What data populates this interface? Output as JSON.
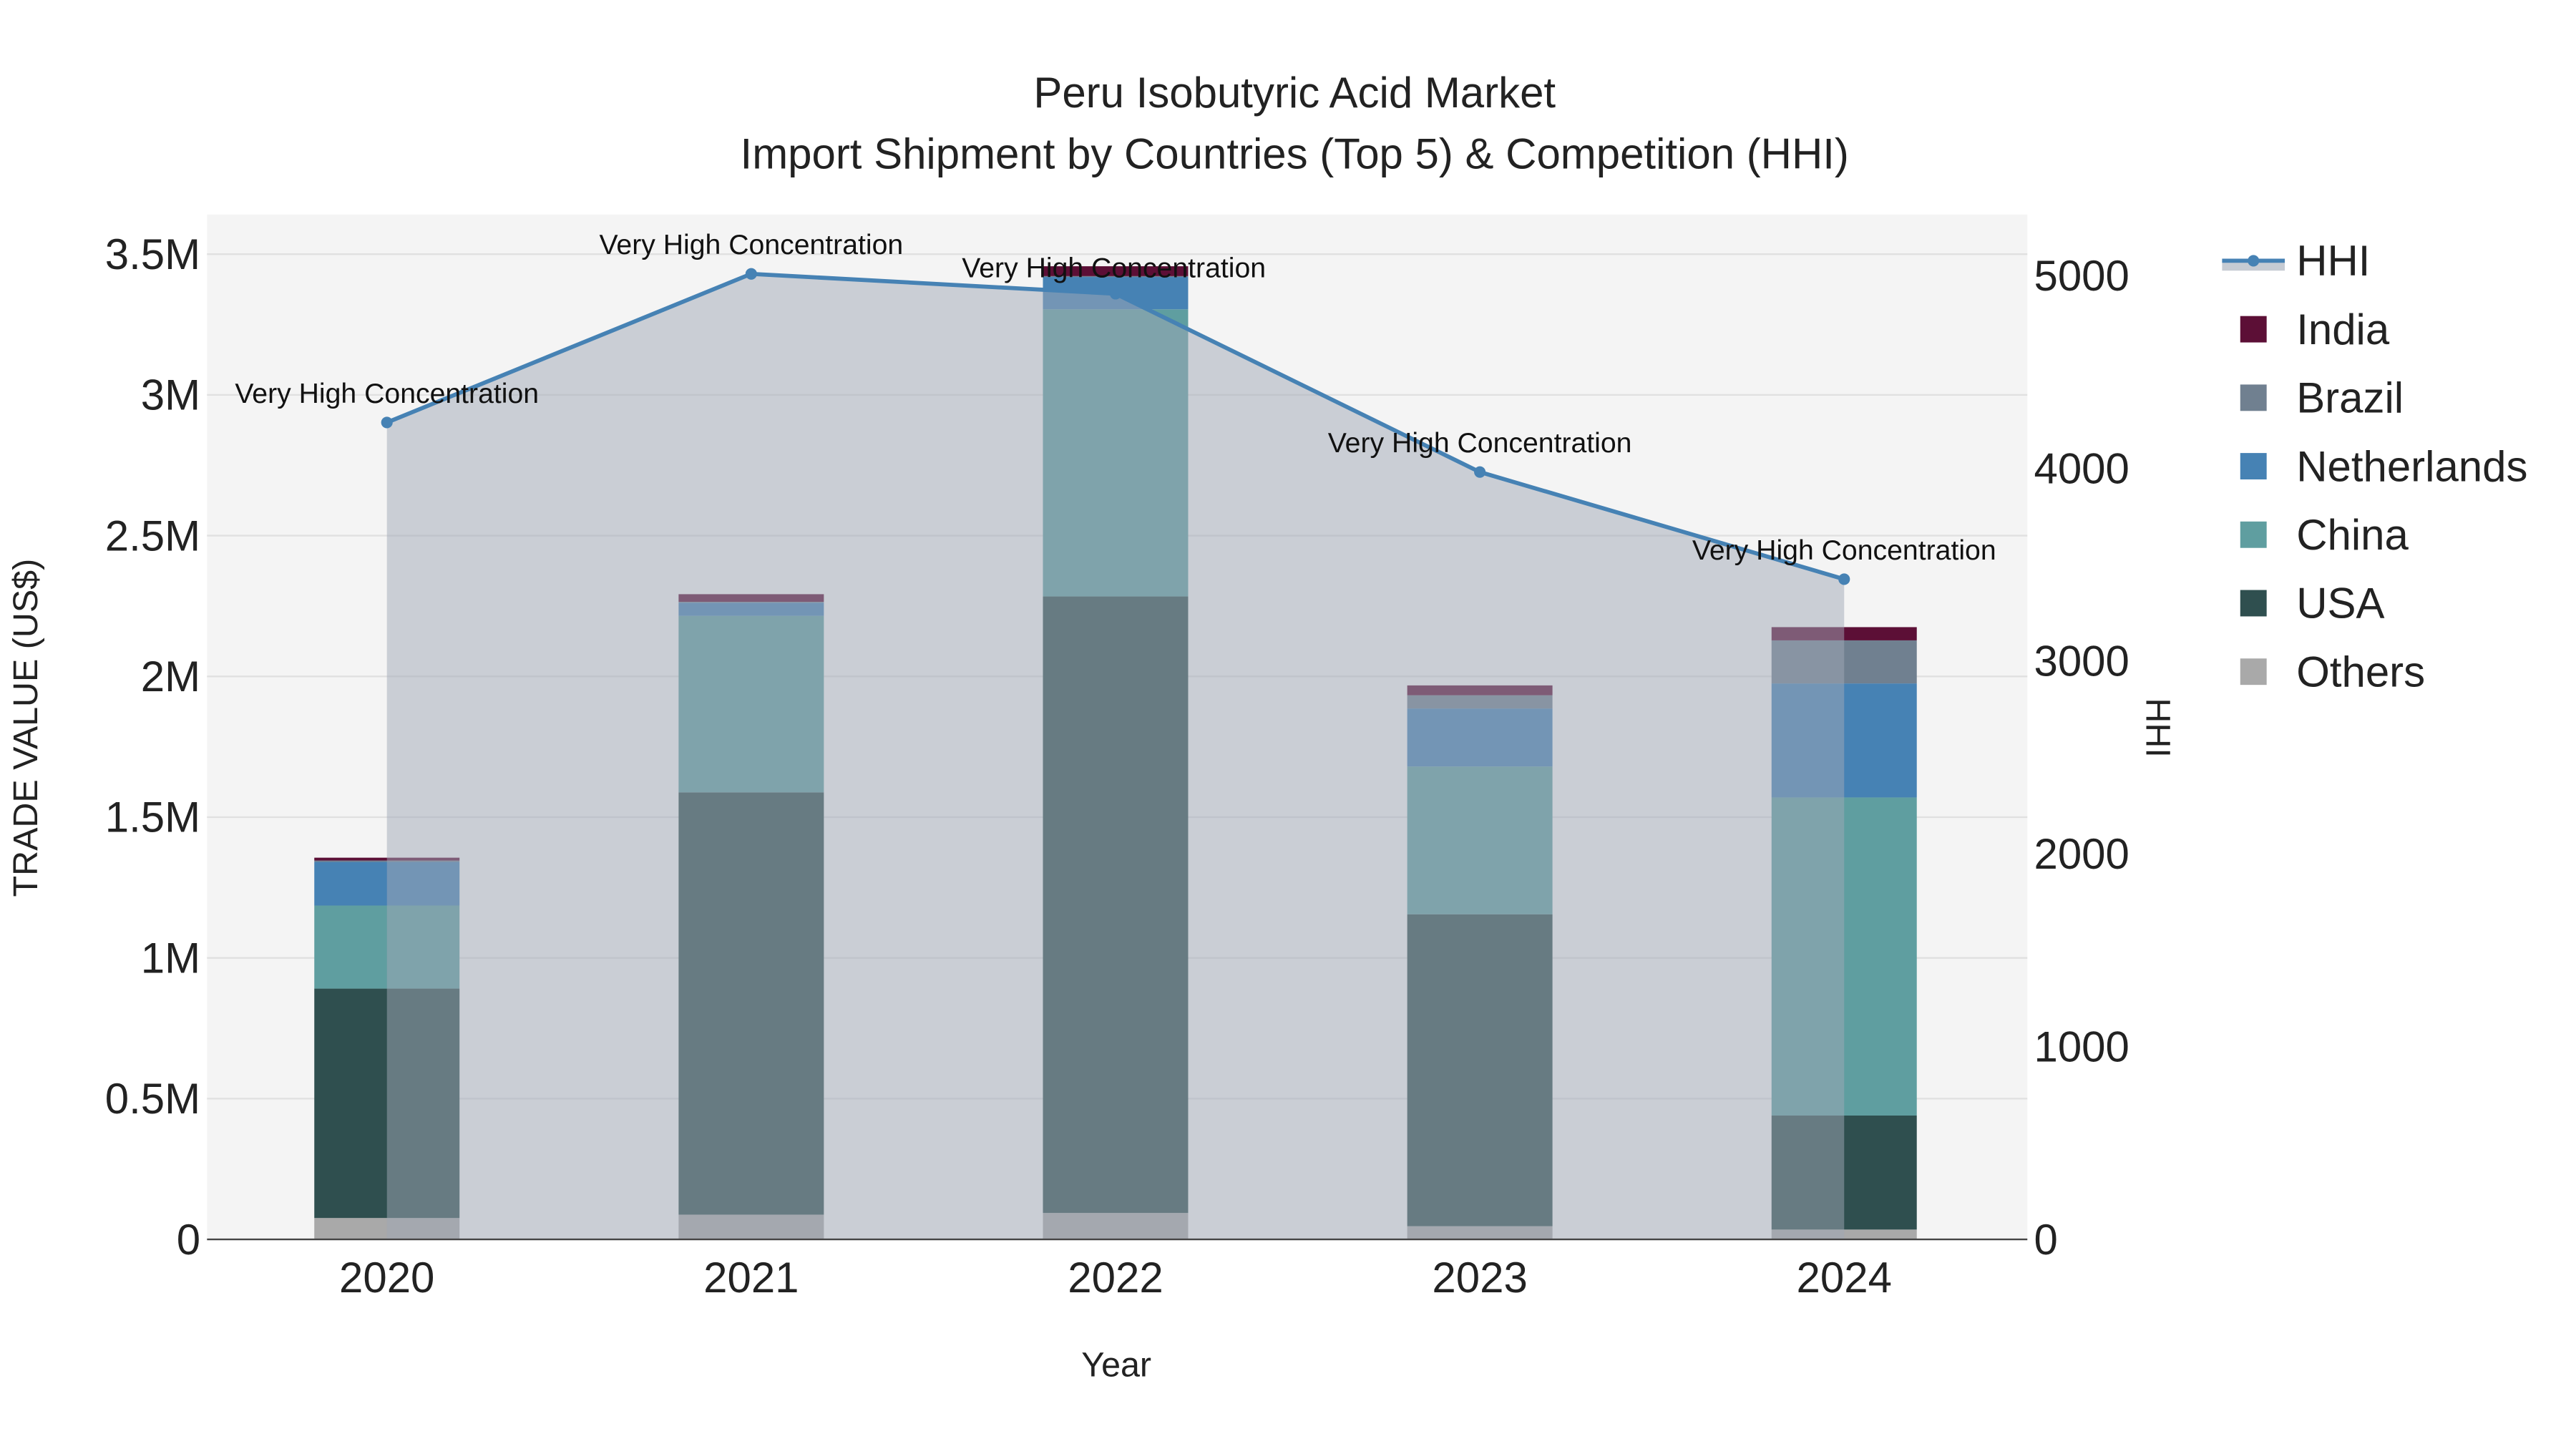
{
  "chart_data": {
    "type": "bar",
    "title": "Peru Isobutyric Acid Market",
    "subtitle": "Import Shipment by Countries (Top 5) & Competition (HHI)",
    "xlabel": "Year",
    "ylabel": "TRADE VALUE (US$)",
    "y2label": "HHI",
    "categories": [
      "2020",
      "2021",
      "2022",
      "2023",
      "2024"
    ],
    "ylim": [
      0,
      3650000
    ],
    "y2lim": [
      0,
      5300
    ],
    "yticks": [
      0,
      500000,
      1000000,
      1500000,
      2000000,
      2500000,
      3000000,
      3500000
    ],
    "ytick_labels": [
      "0",
      "0.5M",
      "1M",
      "1.5M",
      "2M",
      "2.5M",
      "3M",
      "3.5M"
    ],
    "y2ticks": [
      0,
      1000,
      2000,
      3000,
      4000,
      5000
    ],
    "y2tick_labels": [
      "0",
      "1000",
      "2000",
      "3000",
      "4000",
      "5000"
    ],
    "series": [
      {
        "name": "Others",
        "color": "#a9a9a9",
        "values": [
          76000,
          88000,
          94000,
          47000,
          35000
        ]
      },
      {
        "name": "USA",
        "color": "#2f4f4f",
        "values": [
          815000,
          1500000,
          2190000,
          1108000,
          405000
        ]
      },
      {
        "name": "China",
        "color": "#5f9ea0",
        "values": [
          295000,
          627000,
          1020000,
          525000,
          1130000
        ]
      },
      {
        "name": "Netherlands",
        "color": "#4682b4",
        "values": [
          155000,
          47000,
          115000,
          206000,
          405000
        ]
      },
      {
        "name": "Brazil",
        "color": "#708090",
        "values": [
          5000,
          3000,
          3000,
          47000,
          153000
        ]
      },
      {
        "name": "India",
        "color": "#5c0f36",
        "values": [
          10000,
          27000,
          35000,
          35000,
          47000
        ]
      }
    ],
    "hhi": {
      "name": "HHI",
      "color": "#4682b4",
      "values": [
        4238,
        5009,
        4906,
        3981,
        3425
      ],
      "annotations": [
        "Very High Concentration",
        "Very High Concentration",
        "Very High Concentration",
        "Very High Concentration",
        "Very High Concentration"
      ]
    },
    "legend": {
      "placement": "right",
      "items": [
        "HHI",
        "India",
        "Brazil",
        "Netherlands",
        "China",
        "USA",
        "Others"
      ]
    },
    "grid": true
  }
}
